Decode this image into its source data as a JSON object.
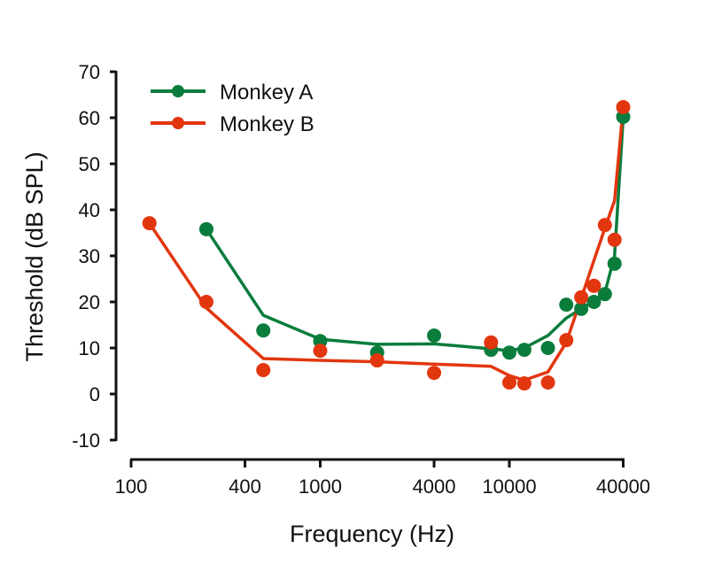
{
  "chart_data": {
    "type": "line",
    "title": "",
    "xlabel": "Frequency (Hz)",
    "ylabel": "Threshold (dB SPL)",
    "xscale": "log",
    "xlim": [
      100,
      40000
    ],
    "ylim": [
      -10,
      70
    ],
    "xticks": [
      100,
      400,
      1000,
      4000,
      10000,
      40000
    ],
    "xtick_labels": [
      "100",
      "400",
      "1000",
      "4000",
      "10000",
      "40000"
    ],
    "yticks": [
      -10,
      0,
      10,
      20,
      30,
      40,
      50,
      60,
      70
    ],
    "ytick_labels": [
      "-10",
      "0",
      "10",
      "20",
      "30",
      "40",
      "50",
      "60",
      "70"
    ],
    "grid": false,
    "legend_position": "top-left",
    "series": [
      {
        "name": "Monkey A",
        "color": "#0a7d3c",
        "points_x": [
          250,
          500,
          1000,
          2000,
          4000,
          8000,
          10000,
          12000,
          16000,
          20000,
          24000,
          28000,
          32000,
          36000,
          40000
        ],
        "points_y": [
          35.8,
          13.8,
          11.5,
          9.0,
          12.7,
          9.6,
          9.0,
          9.6,
          10.0,
          19.4,
          18.5,
          20.0,
          21.7,
          28.3,
          60.2
        ],
        "fit_x": [
          250,
          500,
          1000,
          2000,
          4000,
          8000,
          10000,
          12000,
          16000,
          20000,
          24000,
          28000,
          32000,
          36000,
          40000
        ],
        "fit_y": [
          35.8,
          17.1,
          11.9,
          10.8,
          10.9,
          9.8,
          9.4,
          10.0,
          12.7,
          16.5,
          18.5,
          20.2,
          22.0,
          30.0,
          60.0
        ]
      },
      {
        "name": "Monkey B",
        "color": "#e2360f",
        "points_x": [
          125,
          250,
          500,
          1000,
          2000,
          4000,
          8000,
          10000,
          12000,
          16000,
          20000,
          24000,
          28000,
          32000,
          36000,
          40000
        ],
        "points_y": [
          37.1,
          20.0,
          5.2,
          9.4,
          7.3,
          4.6,
          11.2,
          2.5,
          2.3,
          2.5,
          11.7,
          21.0,
          23.5,
          36.7,
          33.5,
          62.3
        ],
        "fit_x": [
          125,
          250,
          500,
          1000,
          2000,
          4000,
          8000,
          10000,
          12000,
          16000,
          20000,
          24000,
          28000,
          32000,
          36000,
          40000
        ],
        "fit_y": [
          37.1,
          18.7,
          7.7,
          7.3,
          7.0,
          6.5,
          6.0,
          4.0,
          3.0,
          4.8,
          11.2,
          20.8,
          29.0,
          36.0,
          42.0,
          62.3
        ]
      }
    ]
  }
}
